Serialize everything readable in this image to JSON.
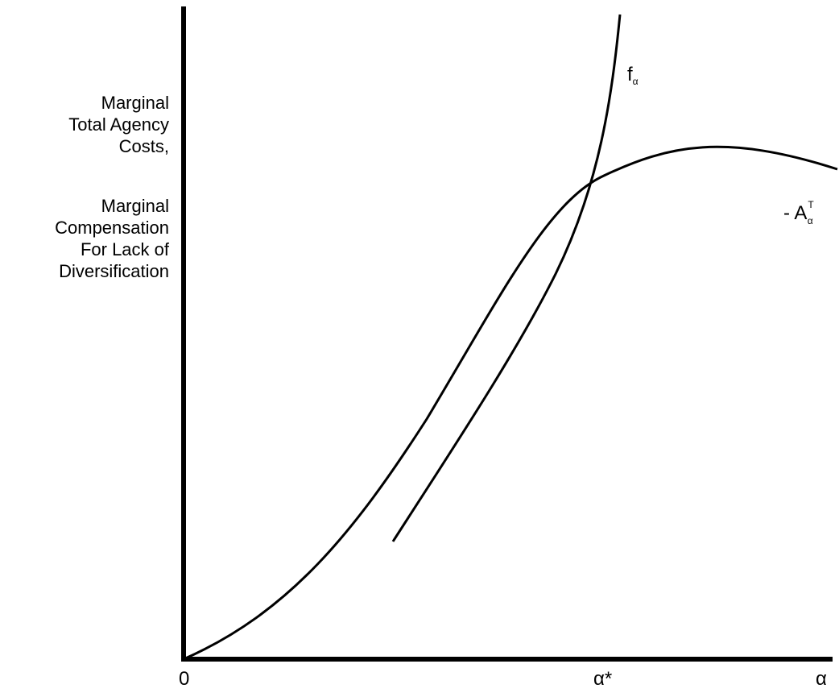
{
  "y_axis_label": {
    "block1": [
      "Marginal",
      "Total Agency",
      "Costs,"
    ],
    "block2": [
      "Marginal",
      "Compensation",
      "For Lack of",
      "Diversification"
    ]
  },
  "x_axis": {
    "origin_label": "0",
    "optimum_label": "α*",
    "axis_label": "α"
  },
  "curves": {
    "f": {
      "base": "f",
      "sub": "α"
    },
    "agency": {
      "prefix": "- A",
      "sup": "T",
      "sub": "α"
    }
  }
}
